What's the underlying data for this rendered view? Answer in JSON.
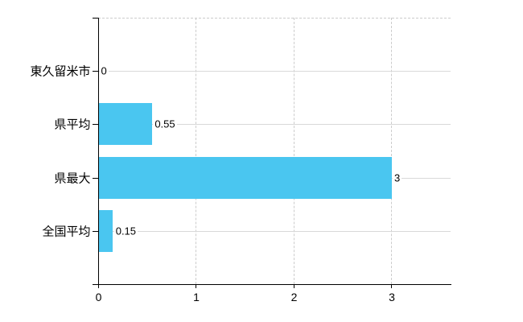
{
  "chart_data": {
    "type": "bar",
    "orientation": "horizontal",
    "title": "",
    "categories": [
      "東久留米市",
      "県平均",
      "県最大",
      "全国平均"
    ],
    "values": [
      0,
      0.55,
      3,
      0.15
    ],
    "value_labels": [
      "0",
      "0.55",
      "3",
      "0.15"
    ],
    "x_ticks": [
      0,
      1,
      2,
      3
    ],
    "x_tick_labels": [
      "0",
      "1",
      "2",
      "3"
    ],
    "xlim": [
      0,
      3.6
    ],
    "grid": "on",
    "legend": "none",
    "colors": {
      "bar": "#4AC6F0",
      "grid_dashed": "#cccccc",
      "grid_solid": "#d9d9d9",
      "axis": "#000000",
      "text": "#000000",
      "background": "#ffffff"
    }
  }
}
